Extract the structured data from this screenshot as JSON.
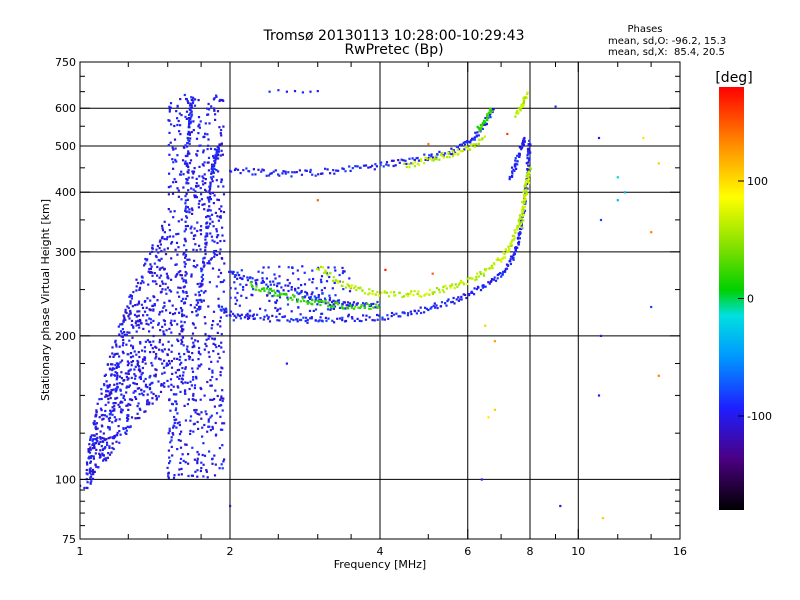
{
  "chart_data": {
    "type": "scatter",
    "title": "Tromsø 20130113 10:28:00-10:29:43",
    "subtitle": "RwPretec (Bp)",
    "info": {
      "heading": "Phases",
      "line1": "mean, sd,O: -96.2, 15.3",
      "line2": "mean, sd,X:  85.4, 20.5"
    },
    "xlabel": "Frequency [MHz]",
    "ylabel": "Stationary phase Virtual Height [km]",
    "x_scale": "log",
    "y_scale": "log",
    "xlim": [
      1,
      16
    ],
    "ylim": [
      75,
      750
    ],
    "x_ticks": [
      1,
      2,
      4,
      6,
      8,
      10,
      16
    ],
    "x_tick_labels": [
      "1",
      "2",
      "4",
      "6",
      "8",
      "10",
      "16"
    ],
    "x_gridlines": [
      2,
      4,
      6,
      8,
      10
    ],
    "y_ticks": [
      75,
      100,
      200,
      300,
      400,
      500,
      600,
      750
    ],
    "y_tick_labels": [
      "75",
      "100",
      "200",
      "300",
      "400",
      "500",
      "600",
      "750"
    ],
    "y_gridlines": [
      100,
      200,
      300,
      400,
      500,
      600
    ],
    "grid": true,
    "colorbar": {
      "label": "[deg]",
      "min": -180,
      "max": 180,
      "tick_values": [
        100,
        0,
        -100
      ],
      "tick_labels": [
        "100",
        "0",
        "-100"
      ]
    },
    "series": [
      {
        "phase": -95,
        "segments": [
          [
            [
              1.5,
              100
            ],
            [
              1.55,
              140
            ],
            [
              1.6,
              200
            ],
            [
              1.62,
              260
            ],
            [
              1.63,
              340
            ],
            [
              1.64,
              420
            ],
            [
              1.65,
              500
            ],
            [
              1.66,
              560
            ],
            [
              1.67,
              600
            ],
            [
              1.68,
              630
            ]
          ],
          [
            [
              1.72,
              220
            ],
            [
              1.75,
              260
            ],
            [
              1.78,
              300
            ],
            [
              1.8,
              350
            ],
            [
              1.82,
              400
            ],
            [
              1.85,
              450
            ],
            [
              1.88,
              480
            ],
            [
              1.9,
              500
            ]
          ],
          [
            [
              2.0,
              445
            ],
            [
              2.3,
              440
            ],
            [
              2.6,
              438
            ],
            [
              3.0,
              440
            ],
            [
              3.5,
              448
            ],
            [
              4.0,
              455
            ],
            [
              4.5,
              465
            ],
            [
              5.0,
              475
            ],
            [
              5.5,
              485
            ],
            [
              5.9,
              500
            ],
            [
              6.2,
              520
            ],
            [
              6.5,
              560
            ],
            [
              6.8,
              600
            ]
          ],
          [
            [
              1.9,
              230
            ],
            [
              2.0,
              222
            ],
            [
              2.3,
              218
            ],
            [
              2.7,
              216
            ],
            [
              3.0,
              216
            ],
            [
              3.5,
              217
            ],
            [
              4.0,
              219
            ],
            [
              4.5,
              222
            ],
            [
              5.0,
              228
            ],
            [
              5.5,
              235
            ],
            [
              6.0,
              243
            ],
            [
              6.5,
              255
            ],
            [
              7.0,
              270
            ],
            [
              7.3,
              285
            ],
            [
              7.5,
              305
            ],
            [
              7.65,
              330
            ],
            [
              7.75,
              360
            ],
            [
              7.85,
              400
            ],
            [
              7.9,
              440
            ],
            [
              7.95,
              480
            ],
            [
              8.0,
              510
            ]
          ],
          [
            [
              2.0,
              270
            ],
            [
              2.2,
              262
            ],
            [
              2.5,
              255
            ],
            [
              2.8,
              245
            ],
            [
              3.0,
              238
            ],
            [
              3.3,
              234
            ],
            [
              3.6,
              232
            ],
            [
              4.0,
              233
            ]
          ],
          [
            [
              7.3,
              430
            ],
            [
              7.5,
              460
            ],
            [
              7.7,
              500
            ],
            [
              7.8,
              520
            ]
          ]
        ]
      },
      {
        "phase": 65,
        "segments": [
          [
            [
              3.0,
              280
            ],
            [
              3.3,
              260
            ],
            [
              3.6,
              250
            ],
            [
              4.0,
              245
            ],
            [
              4.5,
              244
            ],
            [
              5.0,
              246
            ],
            [
              5.5,
              252
            ],
            [
              6.0,
              260
            ],
            [
              6.5,
              272
            ],
            [
              7.0,
              290
            ],
            [
              7.3,
              310
            ],
            [
              7.5,
              330
            ],
            [
              7.7,
              360
            ],
            [
              7.8,
              400
            ],
            [
              7.9,
              440
            ]
          ],
          [
            [
              4.5,
              455
            ],
            [
              5.0,
              470
            ],
            [
              5.5,
              480
            ],
            [
              6.0,
              495
            ],
            [
              6.5,
              520
            ]
          ],
          [
            [
              7.7,
              340
            ],
            [
              7.8,
              380
            ],
            [
              7.9,
              420
            ],
            [
              8.0,
              450
            ]
          ],
          [
            [
              7.5,
              580
            ],
            [
              7.7,
              610
            ],
            [
              7.9,
              640
            ]
          ]
        ]
      },
      {
        "phase": 20,
        "segments": [
          [
            [
              2.2,
              255
            ],
            [
              2.4,
              248
            ],
            [
              2.6,
              242
            ],
            [
              2.9,
              236
            ],
            [
              3.2,
              232
            ],
            [
              3.6,
              230
            ],
            [
              4.0,
              231
            ]
          ],
          [
            [
              6.3,
              540
            ],
            [
              6.5,
              570
            ],
            [
              6.7,
              600
            ]
          ]
        ]
      }
    ],
    "clouds": [
      {
        "xmin": 1.03,
        "xmax": 1.5,
        "ymin": 95,
        "ymax": 360,
        "count": 700,
        "phase": -100,
        "spread": 14,
        "shape": "rising"
      },
      {
        "xmin": 1.5,
        "xmax": 1.95,
        "ymin": 100,
        "ymax": 640,
        "count": 700,
        "phase": -100,
        "spread": 14,
        "shape": "band"
      },
      {
        "xmin": 2.0,
        "xmax": 3.5,
        "ymin": 215,
        "ymax": 280,
        "count": 160,
        "phase": -95,
        "spread": 14,
        "shape": "box"
      }
    ],
    "outliers": [
      [
        2.4,
        650,
        -90
      ],
      [
        2.5,
        655,
        -90
      ],
      [
        2.6,
        650,
        -95
      ],
      [
        2.7,
        652,
        -100
      ],
      [
        2.8,
        648,
        -90
      ],
      [
        2.9,
        650,
        -95
      ],
      [
        3.0,
        652,
        -95
      ],
      [
        2.6,
        175,
        -95
      ],
      [
        2.0,
        88,
        -110
      ],
      [
        1.0,
        97,
        -100
      ],
      [
        1.02,
        96,
        -100
      ],
      [
        1.05,
        98,
        -100
      ],
      [
        6.4,
        100,
        -100
      ],
      [
        6.6,
        135,
        100
      ],
      [
        6.8,
        140,
        110
      ],
      [
        5.1,
        270,
        150
      ],
      [
        6.5,
        210,
        110
      ],
      [
        9.2,
        88,
        -110
      ],
      [
        11.2,
        83,
        110
      ],
      [
        11.0,
        520,
        -100
      ],
      [
        11.1,
        350,
        -80
      ],
      [
        11.1,
        200,
        -100
      ],
      [
        11.0,
        150,
        -100
      ],
      [
        12.0,
        430,
        -20
      ],
      [
        12.4,
        400,
        -40
      ],
      [
        12.0,
        385,
        -35
      ],
      [
        13.5,
        520,
        100
      ],
      [
        14.0,
        330,
        140
      ],
      [
        14.0,
        230,
        -80
      ],
      [
        14.5,
        460,
        110
      ],
      [
        14.5,
        165,
        140
      ],
      [
        9.0,
        605,
        -90
      ],
      [
        7.2,
        530,
        160
      ],
      [
        5.0,
        505,
        140
      ],
      [
        3.0,
        385,
        150
      ],
      [
        4.1,
        275,
        170
      ],
      [
        6.8,
        195,
        130
      ]
    ]
  }
}
